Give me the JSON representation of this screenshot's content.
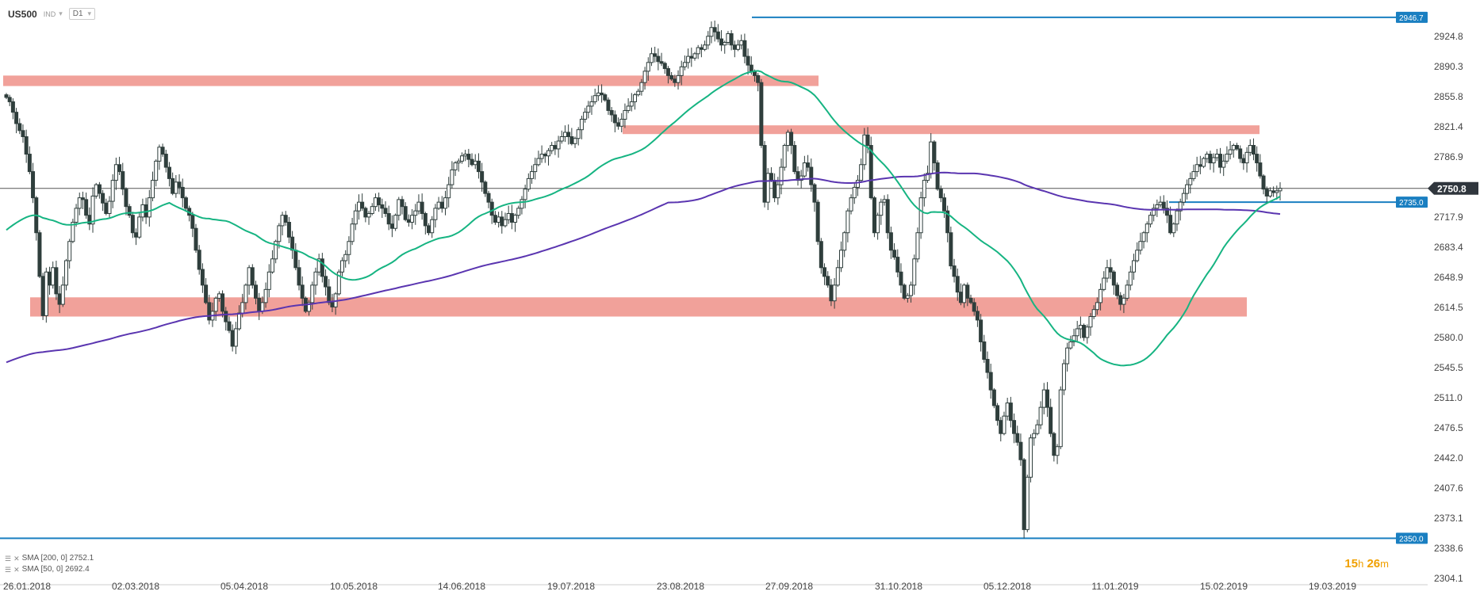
{
  "header": {
    "symbol": "US500",
    "market": "IND",
    "timeframe": "D1"
  },
  "legend": [
    {
      "label": "SMA [200, 0] 2752.1"
    },
    {
      "label": "SMA [50, 0] 2692.4"
    }
  ],
  "timer": {
    "hours": "15",
    "h": "h",
    "minutes": "26",
    "m": "m"
  },
  "colors": {
    "bull": "#ffffff",
    "bear": "#2f3e3c",
    "sma200": "#5a35b0",
    "sma50": "#16b482",
    "zone": "rgba(234,110,100,0.65)",
    "level": "#1a7fc1",
    "price_tag": "#30363d"
  },
  "chart_data": {
    "type": "candlestick",
    "y_ticks": [
      2924.8,
      2890.3,
      2855.8,
      2821.4,
      2786.9,
      2752.4,
      2717.9,
      2683.4,
      2648.9,
      2614.5,
      2580.0,
      2545.5,
      2511.0,
      2476.5,
      2442.0,
      2407.6,
      2373.1,
      2338.6,
      2304.1
    ],
    "y_tick_labels": [
      "2924.8",
      "2890.3",
      "2855.8",
      "2821.4",
      "2786.9",
      "",
      "2717.9",
      "2683.4",
      "2648.9",
      "2614.5",
      "2580.0",
      "2545.5",
      "2511.0",
      "2476.5",
      "2442.0",
      "2407.6",
      "2373.1",
      "2338.6",
      "2304.1"
    ],
    "x_labels": [
      "26.01.2018",
      "02.03.2018",
      "05.04.2018",
      "10.05.2018",
      "14.06.2018",
      "19.07.2018",
      "23.08.2018",
      "27.09.2018",
      "31.10.2018",
      "05.12.2018",
      "11.01.2019",
      "15.02.2019",
      "19.03.2019"
    ],
    "last_price": 2750.8,
    "last_price_label": "2750.8",
    "levels": [
      {
        "value": 2946.7,
        "label": "2946.7"
      },
      {
        "value": 2735.0,
        "label": "2735.0"
      },
      {
        "value": 2350.0,
        "label": "2350.0"
      }
    ],
    "zones": [
      {
        "from": 2868,
        "to": 2880
      },
      {
        "from": 2813,
        "to": 2823
      },
      {
        "from": 2604,
        "to": 2626
      }
    ],
    "close": [
      2855,
      2850,
      2838,
      2825,
      2817,
      2810,
      2790,
      2770,
      2740,
      2700,
      2650,
      2605,
      2655,
      2640,
      2660,
      2630,
      2618,
      2640,
      2668,
      2690,
      2712,
      2728,
      2740,
      2738,
      2720,
      2710,
      2742,
      2755,
      2745,
      2734,
      2722,
      2736,
      2760,
      2778,
      2770,
      2750,
      2730,
      2720,
      2700,
      2695,
      2718,
      2732,
      2718,
      2740,
      2760,
      2782,
      2798,
      2790,
      2775,
      2762,
      2745,
      2758,
      2752,
      2740,
      2728,
      2720,
      2705,
      2680,
      2658,
      2640,
      2620,
      2600,
      2610,
      2625,
      2630,
      2610,
      2598,
      2588,
      2570,
      2590,
      2608,
      2620,
      2640,
      2660,
      2640,
      2625,
      2610,
      2620,
      2635,
      2655,
      2670,
      2690,
      2708,
      2720,
      2712,
      2695,
      2680,
      2660,
      2640,
      2625,
      2610,
      2620,
      2640,
      2655,
      2670,
      2650,
      2638,
      2620,
      2615,
      2630,
      2655,
      2668,
      2675,
      2690,
      2710,
      2725,
      2735,
      2728,
      2718,
      2722,
      2730,
      2740,
      2732,
      2728,
      2722,
      2710,
      2705,
      2720,
      2738,
      2730,
      2715,
      2712,
      2720,
      2725,
      2735,
      2722,
      2708,
      2700,
      2715,
      2728,
      2735,
      2728,
      2740,
      2755,
      2772,
      2780,
      2782,
      2788,
      2790,
      2784,
      2778,
      2782,
      2770,
      2758,
      2745,
      2735,
      2720,
      2712,
      2718,
      2708,
      2715,
      2722,
      2712,
      2720,
      2728,
      2738,
      2750,
      2762,
      2770,
      2778,
      2785,
      2790,
      2788,
      2794,
      2800,
      2796,
      2805,
      2810,
      2815,
      2810,
      2802,
      2808,
      2818,
      2830,
      2838,
      2845,
      2850,
      2857,
      2860,
      2858,
      2852,
      2840,
      2835,
      2826,
      2822,
      2830,
      2840,
      2845,
      2850,
      2858,
      2862,
      2872,
      2885,
      2895,
      2905,
      2902,
      2896,
      2894,
      2888,
      2880,
      2876,
      2872,
      2880,
      2890,
      2895,
      2902,
      2900,
      2905,
      2912,
      2910,
      2915,
      2925,
      2935,
      2930,
      2922,
      2915,
      2918,
      2928,
      2915,
      2910,
      2915,
      2920,
      2902,
      2892,
      2885,
      2880,
      2872,
      2800,
      2735,
      2768,
      2760,
      2740,
      2755,
      2775,
      2800,
      2815,
      2800,
      2770,
      2760,
      2765,
      2780,
      2775,
      2755,
      2735,
      2690,
      2660,
      2650,
      2640,
      2622,
      2640,
      2660,
      2680,
      2700,
      2725,
      2740,
      2752,
      2760,
      2778,
      2812,
      2800,
      2740,
      2700,
      2720,
      2735,
      2738,
      2700,
      2680,
      2672,
      2655,
      2640,
      2625,
      2628,
      2640,
      2670,
      2700,
      2740,
      2760,
      2768,
      2804,
      2780,
      2750,
      2740,
      2725,
      2700,
      2662,
      2650,
      2632,
      2620,
      2640,
      2625,
      2620,
      2610,
      2600,
      2575,
      2555,
      2540,
      2520,
      2502,
      2485,
      2470,
      2490,
      2505,
      2485,
      2470,
      2460,
      2440,
      2360,
      2420,
      2465,
      2470,
      2480,
      2500,
      2520,
      2500,
      2470,
      2445,
      2455,
      2520,
      2550,
      2568,
      2575,
      2582,
      2590,
      2594,
      2580,
      2592,
      2604,
      2612,
      2620,
      2635,
      2648,
      2660,
      2655,
      2640,
      2628,
      2618,
      2625,
      2640,
      2655,
      2668,
      2680,
      2690,
      2700,
      2710,
      2720,
      2728,
      2732,
      2735,
      2728,
      2720,
      2700,
      2710,
      2725,
      2735,
      2745,
      2755,
      2762,
      2770,
      2778,
      2776,
      2785,
      2790,
      2780,
      2786,
      2790,
      2775,
      2782,
      2790,
      2795,
      2800,
      2796,
      2785,
      2780,
      2792,
      2800,
      2790,
      2780,
      2765,
      2750,
      2742,
      2748,
      2746,
      2748,
      2750.8
    ]
  }
}
